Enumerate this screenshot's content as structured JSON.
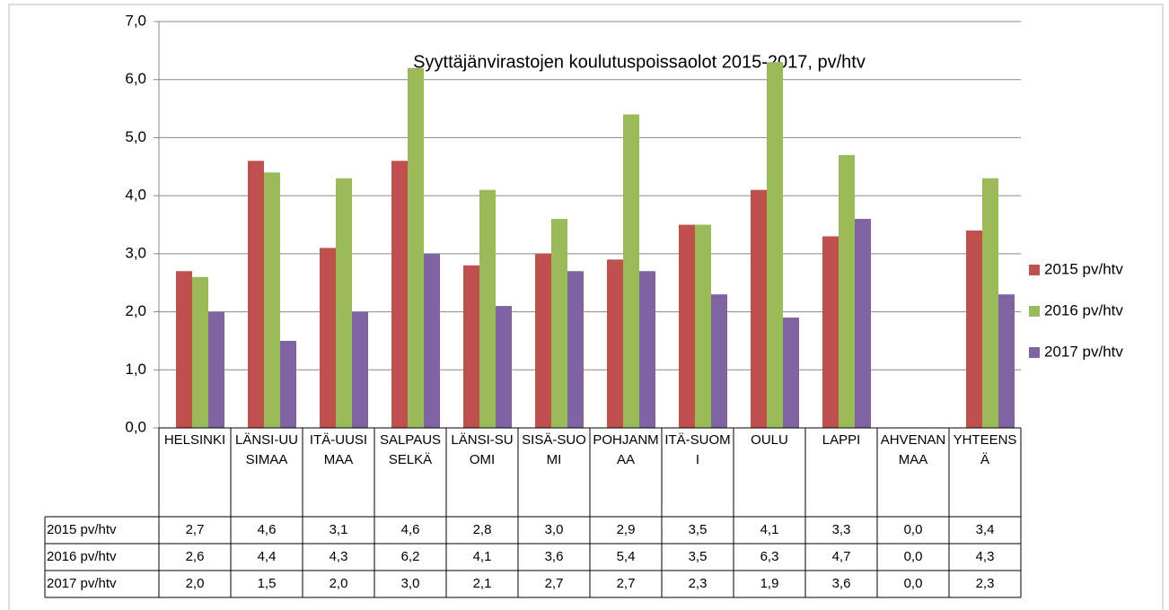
{
  "chart_data": {
    "type": "bar",
    "title": "Syyttäjänvirastojen koulutuspoissaolot 2015-2017, pv/htv",
    "categories": [
      "HELSINKI",
      "LÄNSI-UUSIMAA",
      "ITÄ-UUSIMAA",
      "SALPAUSSELKÄ",
      "LÄNSI-SUOMI",
      "SISÄ-SUOMI",
      "POHJANMAA",
      "ITÄ-SUOMI",
      "OULU",
      "LAPPI",
      "AHVENANMAA",
      "YHTEENSÄ"
    ],
    "series": [
      {
        "name": "2015 pv/htv",
        "color": "#c0504d",
        "values": [
          2.7,
          4.6,
          3.1,
          4.6,
          2.8,
          3.0,
          2.9,
          3.5,
          4.1,
          3.3,
          0.0,
          3.4
        ],
        "value_labels": [
          "2,7",
          "4,6",
          "3,1",
          "4,6",
          "2,8",
          "3,0",
          "2,9",
          "3,5",
          "4,1",
          "3,3",
          "0,0",
          "3,4"
        ]
      },
      {
        "name": "2016 pv/htv",
        "color": "#9bbb59",
        "values": [
          2.6,
          4.4,
          4.3,
          6.2,
          4.1,
          3.6,
          5.4,
          3.5,
          6.3,
          4.7,
          0.0,
          4.3
        ],
        "value_labels": [
          "2,6",
          "4,4",
          "4,3",
          "6,2",
          "4,1",
          "3,6",
          "5,4",
          "3,5",
          "6,3",
          "4,7",
          "0,0",
          "4,3"
        ]
      },
      {
        "name": "2017 pv/htv",
        "color": "#8064a2",
        "values": [
          2.0,
          1.5,
          2.0,
          3.0,
          2.1,
          2.7,
          2.7,
          2.3,
          1.9,
          3.6,
          0.0,
          2.3
        ],
        "value_labels": [
          "2,0",
          "1,5",
          "2,0",
          "3,0",
          "2,1",
          "2,7",
          "2,7",
          "2,3",
          "1,9",
          "3,6",
          "0,0",
          "2,3"
        ]
      }
    ],
    "ylim": [
      0,
      7
    ],
    "yticks": [
      {
        "value": 0,
        "label": "0,0"
      },
      {
        "value": 1,
        "label": "1,0"
      },
      {
        "value": 2,
        "label": "2,0"
      },
      {
        "value": 3,
        "label": "3,0"
      },
      {
        "value": 4,
        "label": "4,0"
      },
      {
        "value": 5,
        "label": "5,0"
      },
      {
        "value": 6,
        "label": "6,0"
      },
      {
        "value": 7,
        "label": "7,0"
      }
    ],
    "grid": true,
    "legend": "right"
  }
}
